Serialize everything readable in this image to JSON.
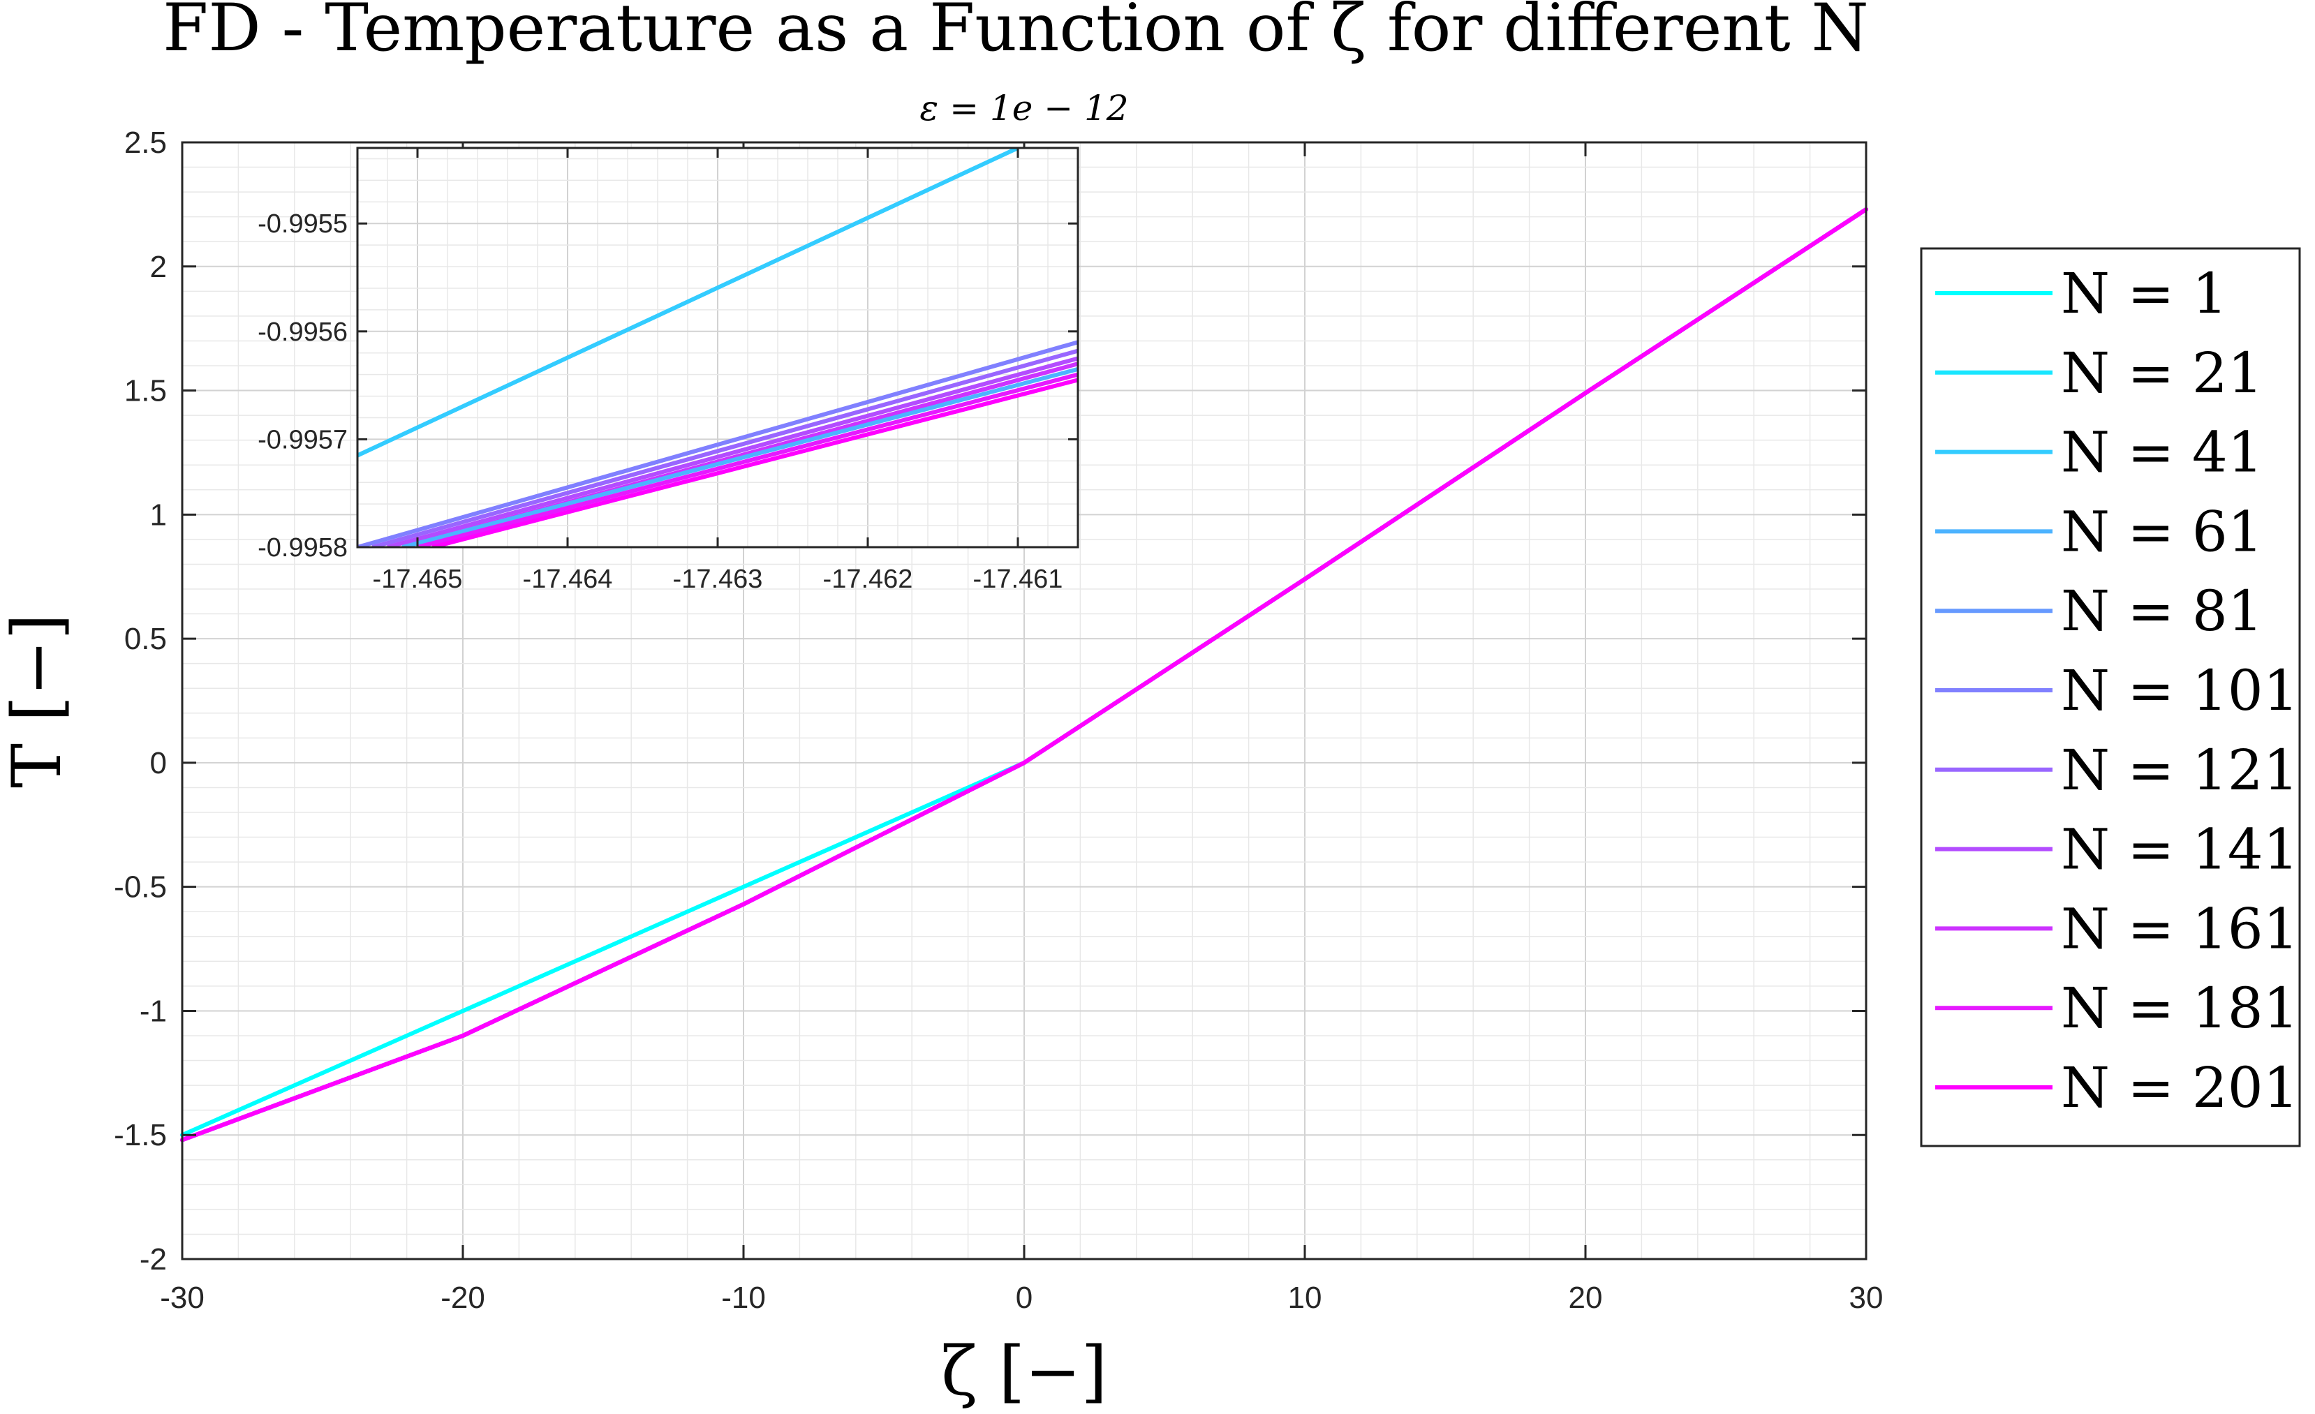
{
  "chart_data": {
    "type": "line",
    "title": "FD - Temperature as a Function of ζ for different N",
    "subtitle": "ε = 1e − 12",
    "xlabel": "ζ [−]",
    "ylabel": "T [−]",
    "xlim": [
      -30,
      30
    ],
    "ylim": [
      -2,
      2.5
    ],
    "xticks": [
      "-30",
      "-20",
      "-10",
      "0",
      "10",
      "20",
      "30"
    ],
    "yticks": [
      "2.5",
      "2",
      "1.5",
      "1",
      "0.5",
      "0",
      "-0.5",
      "-1",
      "-1.5",
      "-2"
    ],
    "grid": true,
    "minor_grid": true,
    "legend_position": "outside-right",
    "series": [
      {
        "name": "N = 1",
        "color": "#00ffff",
        "x": [
          -30,
          -20,
          -10,
          0,
          10,
          20,
          30
        ],
        "y": [
          -1.5,
          -1.0,
          -0.5,
          0,
          0.74,
          1.49,
          2.23
        ]
      },
      {
        "name": "N = 21",
        "color": "#19e6ff",
        "x": [
          -30,
          -20,
          -10,
          0,
          10,
          20,
          30
        ],
        "y": [
          -1.52,
          -1.1,
          -0.57,
          0,
          0.74,
          1.49,
          2.23
        ]
      },
      {
        "name": "N = 41",
        "color": "#33ccff",
        "x": [
          -30,
          -20,
          -10,
          0,
          10,
          20,
          30
        ],
        "y": [
          -1.52,
          -1.1,
          -0.57,
          0,
          0.74,
          1.49,
          2.23
        ]
      },
      {
        "name": "N = 61",
        "color": "#4cb3ff",
        "x": [
          -30,
          -20,
          -10,
          0,
          10,
          20,
          30
        ],
        "y": [
          -1.52,
          -1.1,
          -0.57,
          0,
          0.74,
          1.49,
          2.23
        ]
      },
      {
        "name": "N = 81",
        "color": "#6699ff",
        "x": [
          -30,
          -20,
          -10,
          0,
          10,
          20,
          30
        ],
        "y": [
          -1.52,
          -1.1,
          -0.57,
          0,
          0.74,
          1.49,
          2.23
        ]
      },
      {
        "name": "N = 101",
        "color": "#8080ff",
        "x": [
          -30,
          -20,
          -10,
          0,
          10,
          20,
          30
        ],
        "y": [
          -1.52,
          -1.1,
          -0.57,
          0,
          0.74,
          1.49,
          2.23
        ]
      },
      {
        "name": "N = 121",
        "color": "#9966ff",
        "x": [
          -30,
          -20,
          -10,
          0,
          10,
          20,
          30
        ],
        "y": [
          -1.52,
          -1.1,
          -0.57,
          0,
          0.74,
          1.49,
          2.23
        ]
      },
      {
        "name": "N = 141",
        "color": "#b34cff",
        "x": [
          -30,
          -20,
          -10,
          0,
          10,
          20,
          30
        ],
        "y": [
          -1.52,
          -1.1,
          -0.57,
          0,
          0.74,
          1.49,
          2.23
        ]
      },
      {
        "name": "N = 161",
        "color": "#cc33ff",
        "x": [
          -30,
          -20,
          -10,
          0,
          10,
          20,
          30
        ],
        "y": [
          -1.52,
          -1.1,
          -0.57,
          0,
          0.74,
          1.49,
          2.23
        ]
      },
      {
        "name": "N = 181",
        "color": "#e619ff",
        "x": [
          -30,
          -20,
          -10,
          0,
          10,
          20,
          30
        ],
        "y": [
          -1.52,
          -1.1,
          -0.57,
          0,
          0.74,
          1.49,
          2.23
        ]
      },
      {
        "name": "N = 201",
        "color": "#ff00ff",
        "x": [
          -30,
          -20,
          -10,
          0,
          10,
          20,
          30
        ],
        "y": [
          -1.52,
          -1.1,
          -0.57,
          0,
          0.74,
          1.49,
          2.23
        ]
      }
    ],
    "inset": {
      "xlim": [
        -17.4654,
        -17.4606
      ],
      "ylim": [
        -0.9958,
        -0.99543
      ],
      "xticks": [
        "-17.465",
        "-17.464",
        "-17.463",
        "-17.462",
        "-17.461"
      ],
      "yticks": [
        "-0.9955",
        "-0.9956",
        "-0.9957",
        "-0.9958"
      ],
      "series": [
        {
          "color": "#33ccff",
          "x": [
            -17.4654,
            -17.461
          ],
          "y": [
            -0.995715,
            -0.99543
          ]
        },
        {
          "color": "#8080ff",
          "x": [
            -17.4654,
            -17.4606
          ],
          "y": [
            -0.9958,
            -0.99561
          ]
        },
        {
          "color": "#9966ff",
          "x": [
            -17.4653,
            -17.4606
          ],
          "y": [
            -0.9958,
            -0.995618
          ]
        },
        {
          "color": "#b34cff",
          "x": [
            -17.4652,
            -17.4606
          ],
          "y": [
            -0.9958,
            -0.995625
          ]
        },
        {
          "color": "#cc33ff",
          "x": [
            -17.4651,
            -17.4606
          ],
          "y": [
            -0.9958,
            -0.99563
          ]
        },
        {
          "color": "#4cb3ff",
          "x": [
            -17.4651,
            -17.4606
          ],
          "y": [
            -0.9958,
            -0.995635
          ]
        },
        {
          "color": "#e619ff",
          "x": [
            -17.465,
            -17.4606
          ],
          "y": [
            -0.9958,
            -0.99564
          ]
        },
        {
          "color": "#ff00ff",
          "x": [
            -17.4649,
            -17.4606
          ],
          "y": [
            -0.9958,
            -0.995645
          ]
        }
      ]
    }
  }
}
